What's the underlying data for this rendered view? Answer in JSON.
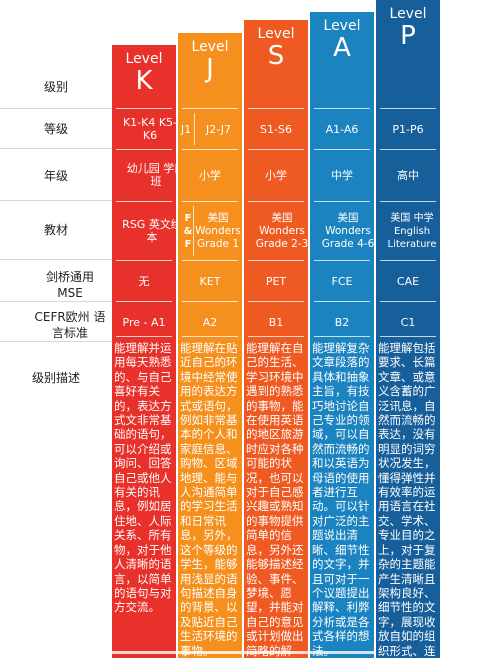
{
  "row_labels": {
    "level": "级别",
    "grade": "等级",
    "age": "年级",
    "textbook": "教材",
    "mse": "剑桥通用 MSE",
    "cefr": "CEFR欧州 语言标准",
    "description": "级别描述"
  },
  "columns": [
    {
      "id": "k",
      "color": "#e8312a",
      "level_word": "Level",
      "level_letter": "K",
      "grade": "K1-K4 K5-K6",
      "age": "幼儿园 学前班",
      "textbook": "RSG 英文绘本",
      "mse": "无",
      "cefr": "Pre - A1",
      "description": "能理解并运用每天熟悉的、与自己喜好有关的，表达方式文非常基础的语句，可以介绍或询问、回答自己或他人有关的讯息，例如居住地、人际关系、所有物，对于他人清晰的语言，以简单的语句与对方交流。"
    },
    {
      "id": "j",
      "color": "#f5901e",
      "level_word": "Level",
      "level_letter": "J",
      "grade_a": "J1",
      "grade_b": "J2-J7",
      "age": "小学",
      "textbook_a": "F & F",
      "textbook_b": "美国 Wonders Grade 1",
      "mse": "KET",
      "cefr": "A2",
      "description": "能理解在贴近自己的环境中经常使用的表达方式或语句，例如非常基本的个人和家庭信息、购物、区域地理、能与人沟通简单的学习生活和日常讯息，另外，这个等级的学生，能够用浅显的语句描述自身的背景、以及贴近自己生活环境的事物。"
    },
    {
      "id": "s",
      "color": "#ef5a22",
      "level_word": "Level",
      "level_letter": "S",
      "grade": "S1-S6",
      "age": "小学",
      "textbook": "美国 Wonders Grade 2-3",
      "mse": "PET",
      "cefr": "B1",
      "description": "能理解在自己的生活、学习环境中遇到的熟悉的事物，能在使用英语的地区旅游时应对各种可能的状况，也可以对于自己感兴趣或熟知的事物提供简单的信息，另外还能够描述经验、事件、梦境、愿望，并能对自己的意见或计划做出简略的解释。"
    },
    {
      "id": "a",
      "color": "#1b83bf",
      "level_word": "Level",
      "level_letter": "A",
      "grade": "A1-A6",
      "age": "中学",
      "textbook": "美国 Wonders Grade 4-6",
      "mse": "FCE",
      "cefr": "B2",
      "description": "能理解复杂文章段落的具体和抽象主旨，有技巧地讨论自己专业的领域，可以自然而流畅的和以英语为母语的使用者进行互动。可以针对广泛的主题说出清晰、细节性的文字，并且可对于一个议题提出解释、利弊分析或是各式各样的想法。"
    },
    {
      "id": "p",
      "color": "#175f9a",
      "level_word": "Level",
      "level_letter": "P",
      "grade": "P1-P6",
      "age": "高中",
      "textbook": "美国 中学 English Literature",
      "mse": "CAE",
      "cefr": "C1",
      "description": "能理解包括要求、长篇文章、或意义含蓄的广泛讯息，自然而流畅的表达，没有明显的词穷状况发生，懂得弹性并有效率的运用语言在社交、学术、专业目的之上，对于复杂的主题能产生清晰且架构良好、细节性的文字，展现收放自如的组织形式、连结和精巧的策略。"
    }
  ]
}
